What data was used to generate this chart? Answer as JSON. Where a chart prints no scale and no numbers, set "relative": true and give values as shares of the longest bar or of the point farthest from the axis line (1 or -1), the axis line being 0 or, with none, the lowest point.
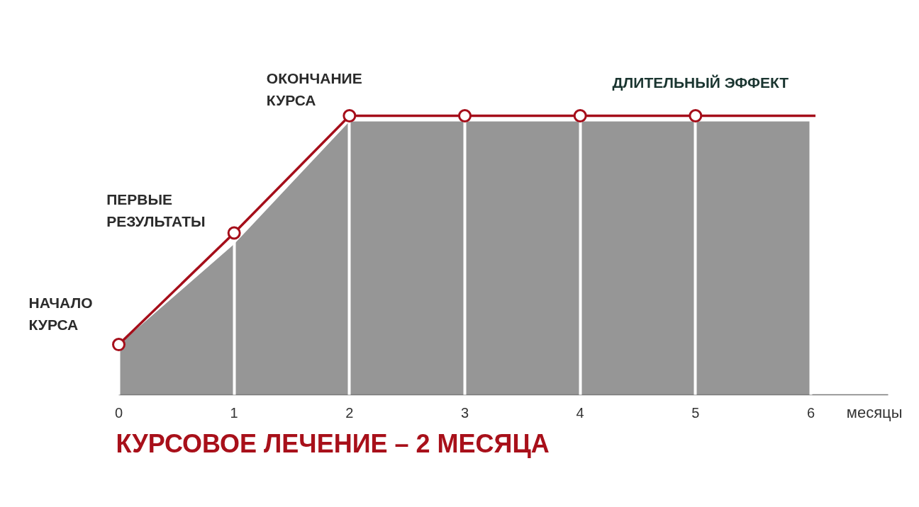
{
  "chart_data": {
    "type": "line",
    "relative": true,
    "title": "КУРСОВОЕ ЛЕЧЕНИЕ – 2 МЕСЯЦА",
    "xlabel": "месяцы",
    "xlim": [
      0,
      6.67
    ],
    "xticks": [
      0,
      1,
      2,
      3,
      4,
      5,
      6
    ],
    "grid": "x",
    "series": [
      {
        "type": "area",
        "color": "#969696",
        "x": [
          0,
          1,
          2,
          3,
          4,
          5,
          6
        ],
        "values": [
          0.18,
          0.54,
          0.98,
          0.98,
          0.98,
          0.98,
          0.98
        ]
      },
      {
        "color": "#a50e1a",
        "x": [
          0,
          1,
          2,
          3,
          4,
          5,
          6.04
        ],
        "values": [
          0.18,
          0.58,
          1,
          1,
          1,
          1,
          1
        ]
      },
      {
        "type": "scatter",
        "color": "#a50e1a",
        "marker": "circle",
        "x": [
          0,
          1,
          2,
          3,
          4,
          5
        ],
        "values": [
          0.18,
          0.58,
          1,
          1,
          1,
          1
        ]
      }
    ],
    "annotations": [
      {
        "text": "НАЧАЛО\nКУРСА",
        "x": 0,
        "y": 0.18
      },
      {
        "text": "ПЕРВЫЕ\nРЕЗУЛЬТАТЫ",
        "x": 1,
        "y": 0.58
      },
      {
        "text": "ОКОНЧАНИЕ\nКУРСА",
        "x": 2,
        "y": 1
      },
      {
        "text": "ДЛИТЕЛЬНЫЙ ЭФФЕКТ",
        "x": 5,
        "y": 1
      }
    ]
  }
}
